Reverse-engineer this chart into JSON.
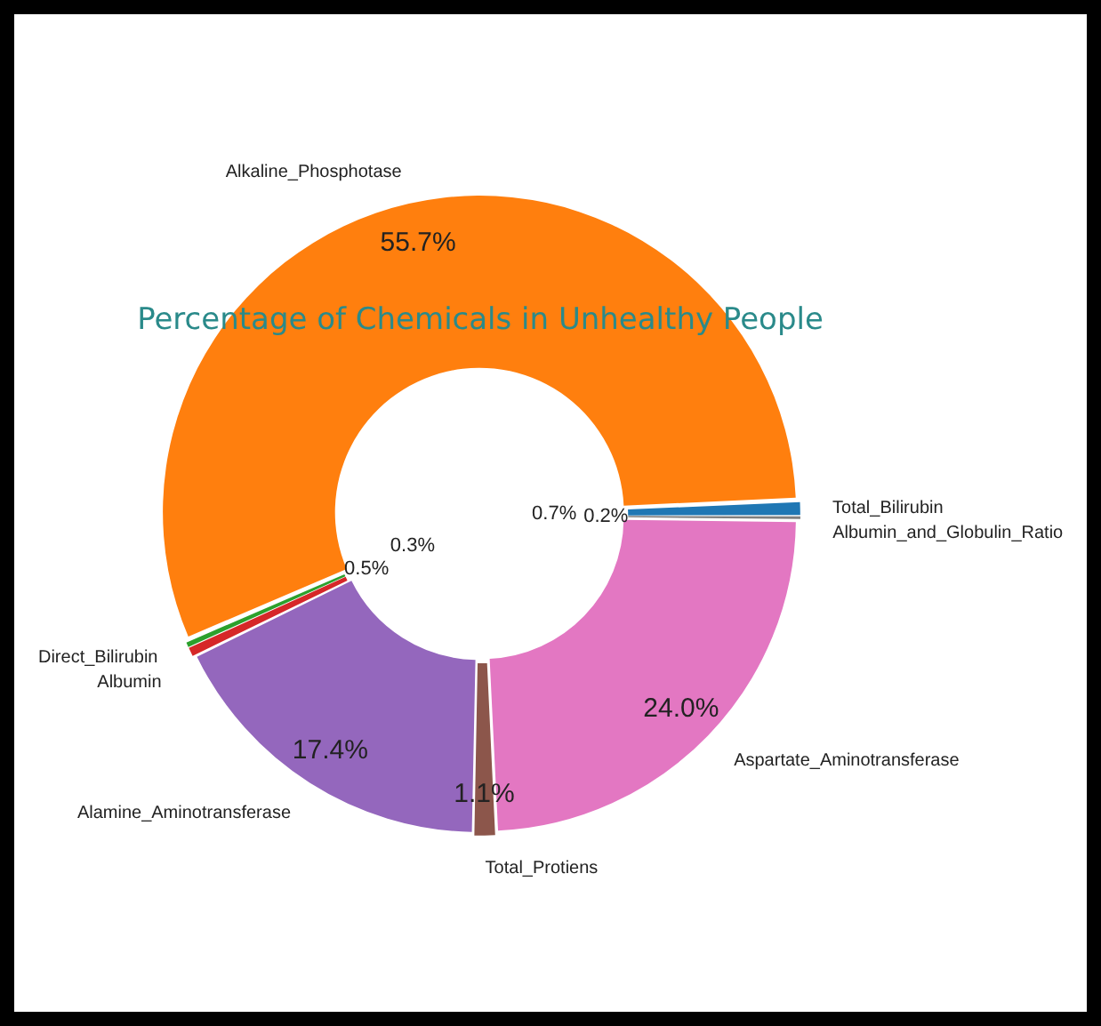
{
  "chart_data": {
    "type": "donut",
    "title": "Percentage of Chemicals in Unhealthy People",
    "categories": [
      "Albumin_and_Globulin_Ratio",
      "Aspartate_Aminotransferase",
      "Total_Protiens",
      "Alamine_Aminotransferase",
      "Albumin",
      "Direct_Bilirubin",
      "Alkaline_Phosphotase",
      "Total_Bilirubin"
    ],
    "values": [
      0.2,
      24.0,
      1.1,
      17.4,
      0.5,
      0.3,
      55.7,
      0.7
    ],
    "value_labels": [
      "0.2%",
      "24.0%",
      "1.1%",
      "17.4%",
      "0.5%",
      "0.3%",
      "55.7%",
      "0.7%"
    ],
    "colors": [
      "#7f7f7f",
      "#e377c2",
      "#8c564b",
      "#9467bd",
      "#d62728",
      "#2ca02c",
      "#ff7f0e",
      "#1f77b4"
    ],
    "legend": false
  }
}
